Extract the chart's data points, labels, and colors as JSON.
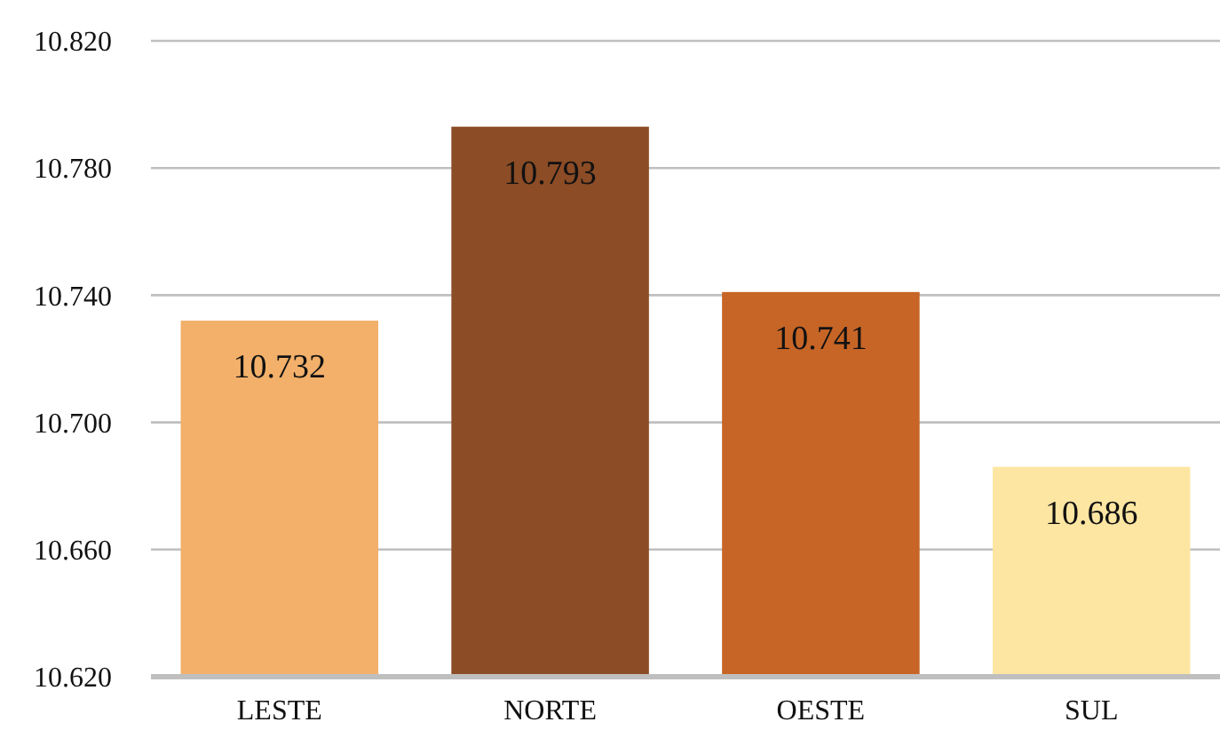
{
  "chart_data": {
    "type": "bar",
    "categories": [
      "LESTE",
      "NORTE",
      "OESTE",
      "SUL"
    ],
    "values": [
      10.732,
      10.793,
      10.741,
      10.686
    ],
    "colors": [
      "#f2b06a",
      "#8b4c26",
      "#c66526",
      "#fde6a2"
    ],
    "value_labels": [
      "10.732",
      "10.793",
      "10.741",
      "10.686"
    ],
    "ylim": [
      10.62,
      10.82
    ],
    "yticks": [
      {
        "value": 10.62,
        "label": "10.620"
      },
      {
        "value": 10.66,
        "label": "10.660"
      },
      {
        "value": 10.7,
        "label": "10.700"
      },
      {
        "value": 10.74,
        "label": "10.740"
      },
      {
        "value": 10.78,
        "label": "10.780"
      },
      {
        "value": 10.82,
        "label": "10.820"
      }
    ],
    "grid": "y"
  }
}
